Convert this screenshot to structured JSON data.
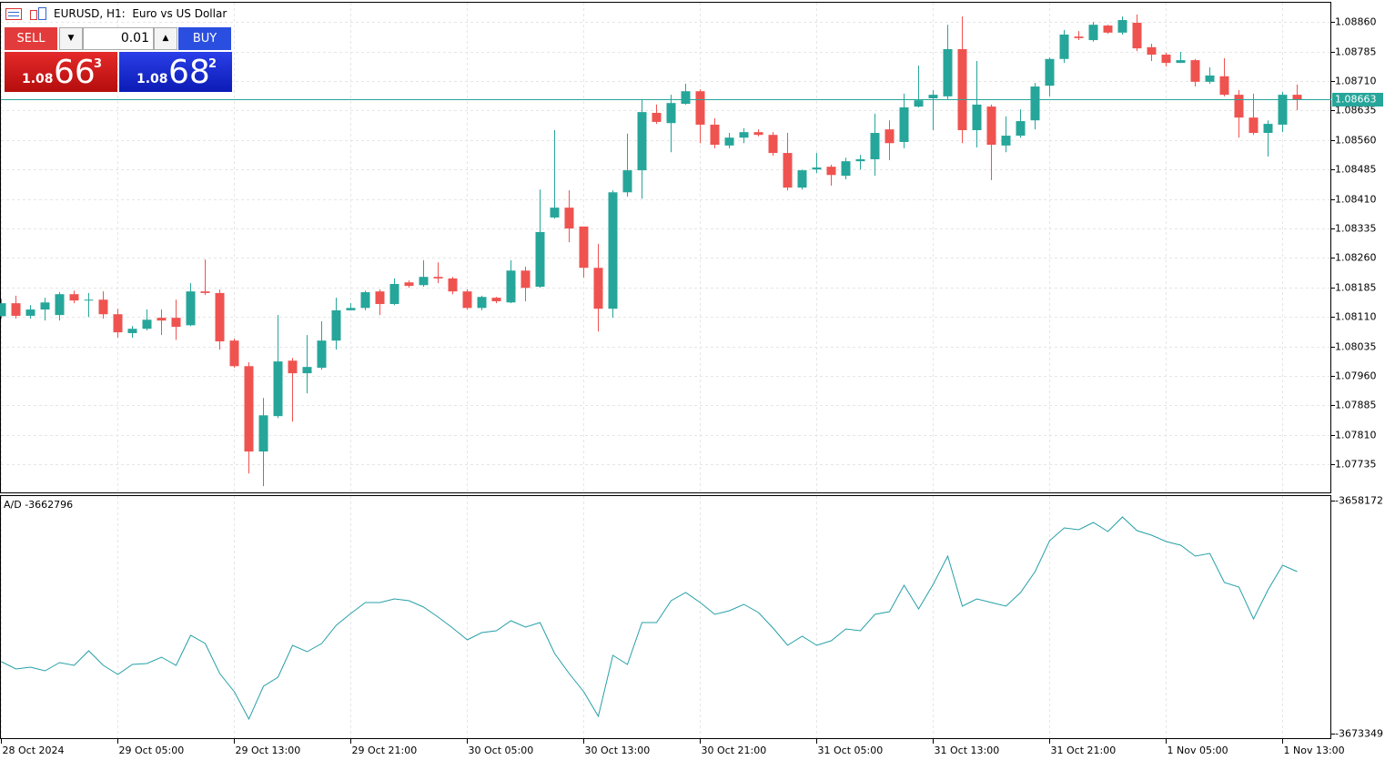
{
  "header": {
    "symbol": "EURUSD, H1:",
    "description": "Euro vs US Dollar"
  },
  "trade_panel": {
    "sell_label": "SELL",
    "buy_label": "BUY",
    "volume": "0.01",
    "bid": {
      "prefix": "1.08",
      "big": "66",
      "small": "3"
    },
    "ask": {
      "prefix": "1.08",
      "big": "68",
      "small": "2"
    }
  },
  "chart_data": [
    {
      "type": "candlestick",
      "open": [
        1.08112,
        1.08145,
        1.08113,
        1.08129,
        1.08115,
        1.08168,
        1.08154,
        1.08154,
        1.08117,
        1.08069,
        1.0808,
        1.08108,
        1.08108,
        1.08089,
        1.08175,
        1.08171,
        1.0805,
        1.07985,
        1.07768,
        1.07858,
        1.07999,
        1.07967,
        1.07981,
        1.0805,
        1.08127,
        1.08133,
        1.08175,
        1.08143,
        1.08198,
        1.08191,
        1.08212,
        1.08208,
        1.08175,
        1.08133,
        1.08159,
        1.08147,
        1.08228,
        1.08187,
        1.08363,
        1.08388,
        1.0834,
        1.08235,
        1.08131,
        1.08427,
        1.08483,
        1.08629,
        1.08603,
        1.08652,
        1.08684,
        1.08599,
        1.08546,
        1.08566,
        1.0858,
        1.08573,
        1.08527,
        1.08439,
        1.08485,
        1.08492,
        1.08469,
        1.08506,
        1.08511,
        1.08587,
        1.08555,
        1.08645,
        1.08666,
        1.08671,
        1.08791,
        1.08585,
        1.08645,
        1.08546,
        1.08571,
        1.0861,
        1.08698,
        1.08766,
        1.08823,
        1.08814,
        1.08851,
        1.08833,
        1.08858,
        1.08796,
        1.08777,
        1.08756,
        1.08763,
        1.08708,
        1.08722,
        1.08675,
        1.08617,
        1.08578,
        1.08599,
        1.08675
      ],
      "high": [
        1.08156,
        1.08164,
        1.0814,
        1.08159,
        1.08173,
        1.08177,
        1.08171,
        1.08175,
        1.08131,
        1.08087,
        1.08129,
        1.08129,
        1.08154,
        1.08196,
        1.08256,
        1.0818,
        1.08055,
        1.07995,
        1.07904,
        1.08115,
        1.08006,
        1.08064,
        1.08099,
        1.08159,
        1.08145,
        1.08177,
        1.0818,
        1.08208,
        1.08203,
        1.08254,
        1.08249,
        1.08212,
        1.0818,
        1.08164,
        1.08161,
        1.08254,
        1.08238,
        1.08434,
        1.08585,
        1.08432,
        1.0834,
        1.08296,
        1.08432,
        1.08576,
        1.08664,
        1.0865,
        1.08675,
        1.08703,
        1.08689,
        1.08615,
        1.08578,
        1.0859,
        1.08587,
        1.0858,
        1.08578,
        1.08485,
        1.08527,
        1.08497,
        1.08515,
        1.08522,
        1.08627,
        1.0861,
        1.08678,
        1.08749,
        1.08687,
        1.08853,
        1.08874,
        1.08761,
        1.0865,
        1.0862,
        1.08638,
        1.08705,
        1.0877,
        1.0884,
        1.08837,
        1.0886,
        1.08853,
        1.08874,
        1.08879,
        1.08805,
        1.08782,
        1.08784,
        1.08766,
        1.08745,
        1.08768,
        1.08687,
        1.08678,
        1.0861,
        1.08682,
        1.08701
      ],
      "low": [
        1.08105,
        1.08106,
        1.08106,
        1.08101,
        1.08101,
        1.08145,
        1.0811,
        1.08106,
        1.08057,
        1.08057,
        1.08076,
        1.08064,
        1.08052,
        1.08087,
        1.08166,
        1.08027,
        1.07981,
        1.07712,
        1.0768,
        1.07853,
        1.07844,
        1.07916,
        1.07976,
        1.08027,
        1.08127,
        1.08127,
        1.08115,
        1.0814,
        1.08184,
        1.08187,
        1.08196,
        1.08168,
        1.08129,
        1.08127,
        1.08145,
        1.08145,
        1.0815,
        1.08184,
        1.0836,
        1.083,
        1.0821,
        1.08073,
        1.08108,
        1.08416,
        1.08411,
        1.08601,
        1.08529,
        1.0865,
        1.08552,
        1.08539,
        1.08539,
        1.08552,
        1.08569,
        1.0852,
        1.08432,
        1.08434,
        1.08476,
        1.08444,
        1.0846,
        1.08485,
        1.08469,
        1.08509,
        1.08539,
        1.08643,
        1.08585,
        1.08664,
        1.08552,
        1.08541,
        1.08458,
        1.08529,
        1.08566,
        1.08587,
        1.08671,
        1.08756,
        1.08814,
        1.0881,
        1.0883,
        1.08828,
        1.08786,
        1.08761,
        1.08747,
        1.08756,
        1.08696,
        1.08703,
        1.08671,
        1.08566,
        1.08573,
        1.08518,
        1.0858,
        1.08636
      ],
      "close": [
        1.08145,
        1.08113,
        1.08129,
        1.08147,
        1.08168,
        1.08152,
        1.08154,
        1.08117,
        1.08071,
        1.0808,
        1.08103,
        1.08101,
        1.08085,
        1.08175,
        1.08171,
        1.08048,
        1.07985,
        1.07768,
        1.0786,
        1.07997,
        1.07967,
        1.07983,
        1.0805,
        1.08127,
        1.08133,
        1.08173,
        1.08143,
        1.08194,
        1.08189,
        1.08212,
        1.08208,
        1.08175,
        1.08133,
        1.08161,
        1.0815,
        1.08228,
        1.08184,
        1.08326,
        1.08388,
        1.08335,
        1.08235,
        1.08131,
        1.08427,
        1.08483,
        1.08631,
        1.08606,
        1.08654,
        1.08684,
        1.08599,
        1.08548,
        1.08566,
        1.0858,
        1.08573,
        1.08527,
        1.08439,
        1.08483,
        1.0849,
        1.08471,
        1.08506,
        1.08511,
        1.08578,
        1.08552,
        1.08643,
        1.08661,
        1.08675,
        1.08791,
        1.08585,
        1.0865,
        1.08548,
        1.08571,
        1.08608,
        1.08696,
        1.08766,
        1.08828,
        1.08819,
        1.08853,
        1.08833,
        1.08865,
        1.08793,
        1.08777,
        1.08756,
        1.08763,
        1.08708,
        1.08724,
        1.08675,
        1.08617,
        1.08578,
        1.08601,
        1.08675,
        1.08663
      ],
      "up_color": "#26a69a",
      "down_color": "#ef5350",
      "ylim": [
        1.07664,
        1.08909
      ],
      "yticks": [
        {
          "value": 1.0886,
          "label": "1.08860"
        },
        1.08785,
        {
          "value": 1.0871,
          "label": "1.08710"
        },
        1.08635,
        {
          "value": 1.0856,
          "label": "1.08560"
        },
        1.08485,
        {
          "value": 1.0841,
          "label": "1.08410"
        },
        1.08335,
        {
          "value": 1.0826,
          "label": "1.08260"
        },
        1.08185,
        {
          "value": 1.0811,
          "label": "1.08110"
        },
        1.08035,
        {
          "value": 1.0796,
          "label": "1.07960"
        },
        1.07885,
        {
          "value": 1.0781,
          "label": "1.07810"
        },
        1.07735
      ],
      "xticks": [
        {
          "value": 0,
          "label": "28 Oct 2024"
        },
        {
          "value": 8,
          "label": "29 Oct 05:00"
        },
        {
          "value": 16,
          "label": "29 Oct 13:00"
        },
        {
          "value": 24,
          "label": "29 Oct 21:00"
        },
        {
          "value": 32,
          "label": "30 Oct 05:00"
        },
        {
          "value": 40,
          "label": "30 Oct 13:00"
        },
        {
          "value": 48,
          "label": "30 Oct 21:00"
        },
        {
          "value": 56,
          "label": "31 Oct 05:00"
        },
        {
          "value": 64,
          "label": "31 Oct 13:00"
        },
        {
          "value": 72,
          "label": "31 Oct 21:00"
        },
        {
          "value": 80,
          "label": "1 Nov 05:00"
        },
        {
          "value": 88,
          "label": "1 Nov 13:00"
        }
      ],
      "grid": true,
      "last_price": 1.08663,
      "last_price_color": "#26a69a"
    },
    {
      "type": "line",
      "series": [
        {
          "name": "A/D",
          "color": "#26a0a8",
          "values": [
            -3668666,
            -3669141,
            -3669022,
            -3669259,
            -3668726,
            -3668903,
            -3667955,
            -3668903,
            -3669496,
            -3668844,
            -3668785,
            -3668370,
            -3668903,
            -3666947,
            -3667481,
            -3669437,
            -3670623,
            -3672402,
            -3670267,
            -3669674,
            -3667599,
            -3668014,
            -3667481,
            -3666295,
            -3665524,
            -3664812,
            -3664812,
            -3664575,
            -3664694,
            -3665109,
            -3665761,
            -3666473,
            -3667243,
            -3666769,
            -3666650,
            -3665998,
            -3666413,
            -3666117,
            -3668133,
            -3669437,
            -3670623,
            -3672224,
            -3668251,
            -3668844,
            -3666117,
            -3666117,
            -3664694,
            -3664160,
            -3664812,
            -3665583,
            -3665346,
            -3664931,
            -3665465,
            -3666473,
            -3667599,
            -3667006,
            -3667599,
            -3667303,
            -3666532,
            -3666650,
            -3665583,
            -3665405,
            -3663686,
            -3665228,
            -3663627,
            -3661789,
            -3665050,
            -3664575,
            -3664812,
            -3665050,
            -3664160,
            -3662797,
            -3660781,
            -3659951,
            -3660069,
            -3659595,
            -3660188,
            -3659239,
            -3660129,
            -3660425,
            -3660840,
            -3661077,
            -3661789,
            -3661611,
            -3663508,
            -3663805,
            -3665880,
            -3663982,
            -3662382,
            -3662796
          ]
        }
      ],
      "ylim": [
        -3673349,
        -3658172
      ],
      "yticks": [
        -3673349,
        -3658172
      ],
      "grid": true
    }
  ]
}
